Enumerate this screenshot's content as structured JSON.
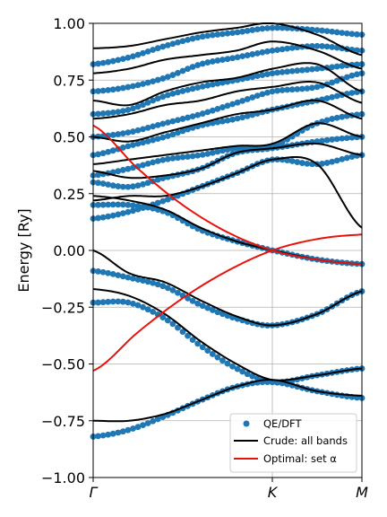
{
  "chart_data": {
    "type": "line",
    "ylabel": "Energy [Ry]",
    "ylim": [
      -1.0,
      1.0
    ],
    "xlim": [
      0,
      1.5
    ],
    "grid": true,
    "legend_placement": "bottom-right",
    "y_ticks": [
      {
        "value": -1.0,
        "label": "−1.00"
      },
      {
        "value": -0.75,
        "label": "−0.75"
      },
      {
        "value": -0.5,
        "label": "−0.50"
      },
      {
        "value": -0.25,
        "label": "−0.25"
      },
      {
        "value": 0.0,
        "label": "0.00"
      },
      {
        "value": 0.25,
        "label": "0.25"
      },
      {
        "value": 0.5,
        "label": "0.50"
      },
      {
        "value": 0.75,
        "label": "0.75"
      },
      {
        "value": 1.0,
        "label": "1.00"
      }
    ],
    "x_ticks": [
      {
        "value": 0.0,
        "label": "Γ"
      },
      {
        "value": 1.0,
        "label": "K"
      },
      {
        "value": 1.5,
        "label": "M"
      }
    ],
    "legend": [
      "QE/DFT",
      "Crude: all bands",
      "Optimal: set α"
    ],
    "colors": {
      "dft": "#1f77b4",
      "crude": "#000000",
      "optimal": "#e8120c"
    },
    "series": [
      {
        "name": "QE/DFT",
        "style": "points",
        "x": [
          0,
          0.2,
          0.4,
          0.6,
          0.8,
          1.0,
          1.25,
          1.5
        ],
        "bands": [
          [
            -0.82,
            -0.79,
            -0.73,
            -0.66,
            -0.6,
            -0.58,
            -0.62,
            -0.65
          ],
          [
            -0.23,
            -0.23,
            -0.3,
            -0.42,
            -0.52,
            -0.58,
            -0.55,
            -0.52
          ],
          [
            -0.09,
            -0.12,
            -0.16,
            -0.24,
            -0.3,
            -0.33,
            -0.28,
            -0.18
          ],
          [
            0.2,
            0.2,
            0.17,
            0.09,
            0.04,
            0.0,
            -0.04,
            -0.06
          ],
          [
            0.14,
            0.17,
            0.22,
            0.28,
            0.34,
            0.4,
            0.38,
            0.42
          ],
          [
            0.3,
            0.28,
            0.32,
            0.36,
            0.43,
            0.45,
            0.48,
            0.5
          ],
          [
            0.33,
            0.36,
            0.4,
            0.42,
            0.45,
            0.46,
            0.56,
            0.6
          ],
          [
            0.42,
            0.46,
            0.5,
            0.55,
            0.58,
            0.62,
            0.66,
            0.7
          ],
          [
            0.5,
            0.52,
            0.56,
            0.6,
            0.65,
            0.7,
            0.72,
            0.78
          ],
          [
            0.6,
            0.62,
            0.68,
            0.72,
            0.75,
            0.78,
            0.8,
            0.82
          ],
          [
            0.7,
            0.72,
            0.76,
            0.82,
            0.85,
            0.88,
            0.9,
            0.88
          ],
          [
            0.82,
            0.85,
            0.9,
            0.94,
            0.96,
            0.98,
            0.97,
            0.95
          ]
        ]
      },
      {
        "name": "Crude: all bands",
        "style": "line",
        "x": [
          0,
          0.2,
          0.4,
          0.6,
          0.8,
          1.0,
          1.25,
          1.5
        ],
        "bands": [
          [
            -0.75,
            -0.75,
            -0.72,
            -0.66,
            -0.6,
            -0.57,
            -0.62,
            -0.64
          ],
          [
            -0.17,
            -0.2,
            -0.28,
            -0.4,
            -0.5,
            -0.57,
            -0.55,
            -0.52
          ],
          [
            0.0,
            -0.1,
            -0.14,
            -0.22,
            -0.29,
            -0.33,
            -0.28,
            -0.18
          ],
          [
            0.24,
            0.22,
            0.18,
            0.1,
            0.04,
            0.0,
            -0.04,
            -0.06
          ],
          [
            0.22,
            0.24,
            0.24,
            0.28,
            0.34,
            0.4,
            0.38,
            0.1
          ],
          [
            0.35,
            0.32,
            0.33,
            0.36,
            0.43,
            0.45,
            0.47,
            0.42
          ],
          [
            0.38,
            0.4,
            0.42,
            0.44,
            0.46,
            0.47,
            0.56,
            0.5
          ],
          [
            0.5,
            0.48,
            0.52,
            0.56,
            0.6,
            0.62,
            0.66,
            0.58
          ],
          [
            0.58,
            0.6,
            0.64,
            0.66,
            0.7,
            0.72,
            0.74,
            0.65
          ],
          [
            0.66,
            0.64,
            0.7,
            0.74,
            0.76,
            0.8,
            0.82,
            0.7
          ],
          [
            0.78,
            0.8,
            0.84,
            0.86,
            0.88,
            0.92,
            0.88,
            0.8
          ],
          [
            0.89,
            0.9,
            0.93,
            0.96,
            0.98,
            1.0,
            0.95,
            0.86
          ]
        ]
      },
      {
        "name": "Optimal: set α",
        "style": "line",
        "x": [
          0,
          0.25,
          0.5,
          0.75,
          1.0,
          1.25,
          1.5
        ],
        "bands": [
          [
            -0.53,
            -0.36,
            -0.21,
            -0.09,
            0.0,
            0.05,
            0.07
          ],
          [
            0.55,
            0.36,
            0.2,
            0.08,
            0.0,
            -0.04,
            -0.06
          ]
        ]
      }
    ]
  }
}
